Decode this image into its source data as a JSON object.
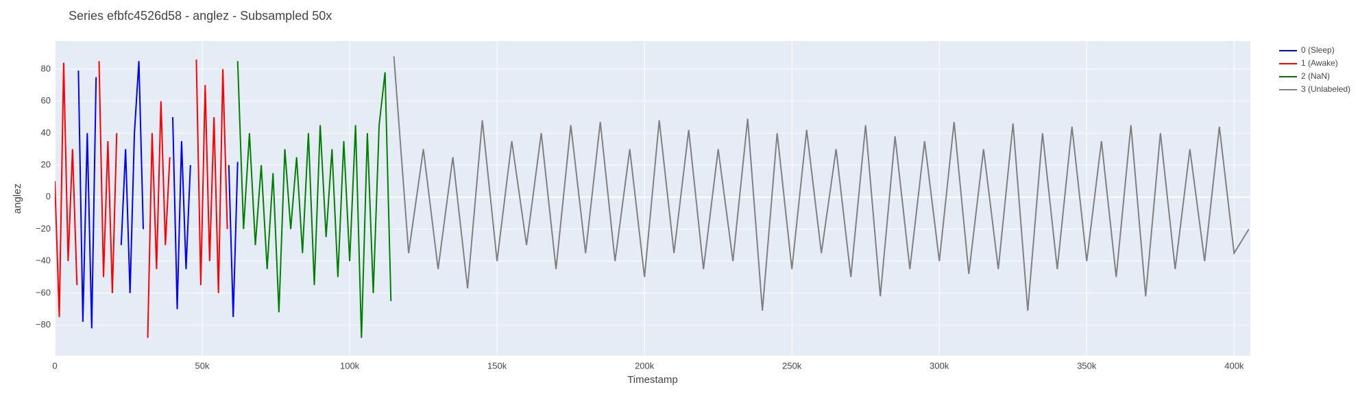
{
  "chart_data": {
    "type": "line",
    "title": "Series efbfc4526d58 - anglez - Subsampled 50x",
    "x_label": "Timestamp",
    "y_label": "anglez",
    "xlim": [
      0,
      405500
    ],
    "ylim": [
      -99,
      97.5
    ],
    "xticks": [
      0,
      {
        "value": 50000,
        "label": "50k"
      },
      {
        "value": 100000,
        "label": "100k"
      },
      {
        "value": 150000,
        "label": "150k"
      },
      {
        "value": 200000,
        "label": "200k"
      },
      {
        "value": 250000,
        "label": "250k"
      },
      {
        "value": 300000,
        "label": "300k"
      },
      {
        "value": 350000,
        "label": "350k"
      },
      {
        "value": 400000,
        "label": "400k"
      }
    ],
    "yticks": [
      {
        "value": -80,
        "label": "−80"
      },
      {
        "value": -60,
        "label": "−60"
      },
      {
        "value": -40,
        "label": "−40"
      },
      {
        "value": -20,
        "label": "−20"
      },
      0,
      20,
      40,
      60,
      80
    ],
    "grid": true,
    "legend": "right",
    "series": [
      {
        "name": "0 (Sleep)",
        "color": "#0000ff",
        "x": [
          8000,
          9500,
          11000,
          12500,
          14000,
          18000,
          22500,
          24000,
          25500,
          27000,
          28500,
          30000,
          35000,
          40000,
          41500,
          43000,
          44500,
          46000,
          52000,
          59000,
          60500,
          62000
        ],
        "values": [
          79,
          -78,
          40,
          -82,
          75,
          null,
          -30,
          30,
          -60,
          40,
          85,
          -20,
          null,
          50,
          -70,
          35,
          -45,
          20,
          null,
          20,
          -75,
          22
        ]
      },
      {
        "name": "1 (Awake)",
        "color": "#ff0000",
        "x": [
          0,
          1500,
          3000,
          4500,
          6000,
          7500,
          11000,
          15000,
          16500,
          18000,
          19500,
          21000,
          26000,
          31500,
          33000,
          34500,
          36000,
          37500,
          39000,
          43500,
          48000,
          49500,
          51000,
          52500,
          54000,
          55500,
          57000,
          58500
        ],
        "values": [
          10,
          -75,
          84,
          -40,
          30,
          -55,
          null,
          85,
          -50,
          35,
          -60,
          40,
          null,
          -88,
          40,
          -45,
          60,
          -30,
          25,
          null,
          86,
          -55,
          70,
          -40,
          50,
          -60,
          80,
          -20
        ]
      },
      {
        "name": "2 (NaN)",
        "color": "#008000",
        "x": [
          62000,
          64000,
          66000,
          68000,
          70000,
          72000,
          74000,
          76000,
          78000,
          80000,
          82000,
          84000,
          86000,
          88000,
          90000,
          92000,
          94000,
          96000,
          98000,
          100000,
          102000,
          104000,
          106000,
          108000,
          110000,
          112000,
          114000
        ],
        "values": [
          85,
          -20,
          40,
          -30,
          20,
          -45,
          15,
          -72,
          30,
          -20,
          25,
          -35,
          40,
          -55,
          45,
          -25,
          30,
          -50,
          35,
          -40,
          45,
          -88,
          40,
          -60,
          45,
          78,
          -65
        ]
      },
      {
        "name": "3 (Unlabeled)",
        "color": "#808080",
        "x": [
          115000,
          120000,
          125000,
          130000,
          135000,
          140000,
          145000,
          150000,
          155000,
          160000,
          165000,
          170000,
          175000,
          180000,
          185000,
          190000,
          195000,
          200000,
          205000,
          210000,
          215000,
          220000,
          225000,
          230000,
          235000,
          240000,
          245000,
          250000,
          255000,
          260000,
          265000,
          270000,
          275000,
          280000,
          285000,
          290000,
          295000,
          300000,
          305000,
          310000,
          315000,
          320000,
          325000,
          330000,
          335000,
          340000,
          345000,
          350000,
          355000,
          360000,
          365000,
          370000,
          375000,
          380000,
          385000,
          390000,
          395000,
          400000,
          405000
        ],
        "values": [
          88,
          -35,
          30,
          -45,
          25,
          -57,
          48,
          -40,
          35,
          -30,
          40,
          -45,
          45,
          -35,
          47,
          -40,
          30,
          -50,
          48,
          -35,
          42,
          -45,
          30,
          -40,
          49,
          -71,
          40,
          -45,
          42,
          -35,
          30,
          -50,
          45,
          -62,
          38,
          -45,
          35,
          -40,
          47,
          -48,
          30,
          -45,
          46,
          -71,
          40,
          -45,
          44,
          -40,
          35,
          -50,
          45,
          -62,
          40,
          -45,
          30,
          -40,
          44,
          -35,
          -20
        ]
      }
    ]
  }
}
